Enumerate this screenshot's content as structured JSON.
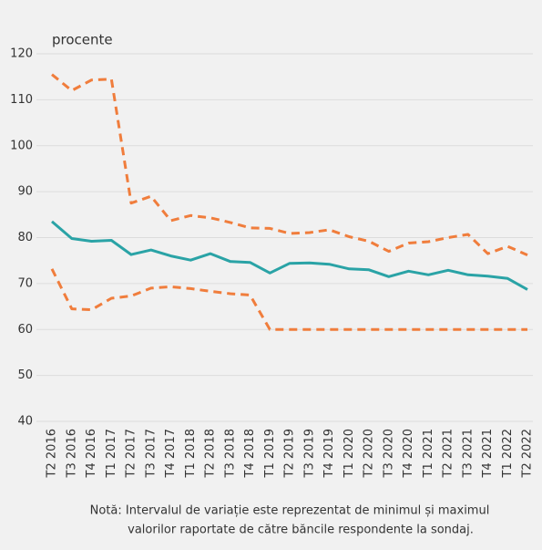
{
  "chart_data": {
    "type": "line",
    "y_label": "procente",
    "categories": [
      "T2 2016",
      "T3 2016",
      "T4 2016",
      "T1 2017",
      "T2 2017",
      "T3 2017",
      "T4 2017",
      "T1 2018",
      "T2 2018",
      "T3 2018",
      "T4 2018",
      "T1 2019",
      "T2 2019",
      "T3 2019",
      "T4 2019",
      "T1 2020",
      "T2 2020",
      "T3 2020",
      "T4 2020",
      "T1 2021",
      "T2 2021",
      "T3 2021",
      "T4 2021",
      "T1 2022",
      "T2 2022"
    ],
    "series": [
      {
        "color": "#2aa3a6",
        "dashed": false,
        "values": [
          83.5,
          79.8,
          79.2,
          79.4,
          76.3,
          77.3,
          76,
          75.1,
          76.5,
          74.8,
          74.6,
          72.3,
          74.4,
          74.5,
          74.2,
          73.2,
          73,
          71.5,
          72.7,
          71.9,
          72.9,
          71.9,
          71.6,
          71.1,
          68.7
        ]
      },
      {
        "color": "#f07d3c",
        "dashed": true,
        "values": [
          115.5,
          112,
          114.3,
          114.5,
          87.5,
          89,
          83.7,
          84.8,
          84.3,
          83.3,
          82.1,
          82,
          80.9,
          81.1,
          81.7,
          80.2,
          79.2,
          77,
          78.8,
          79.1,
          80,
          80.7,
          76.5,
          78.1,
          76.2
        ]
      },
      {
        "color": "#f07d3c",
        "dashed": true,
        "values": [
          73.2,
          64.5,
          64.3,
          66.8,
          67.3,
          69,
          69.3,
          68.9,
          68.3,
          67.8,
          67.5,
          60,
          60,
          60,
          60,
          60,
          60,
          60,
          60,
          60,
          60,
          60,
          60,
          60,
          60
        ]
      }
    ],
    "ylim": [
      40,
      120
    ],
    "yticks": [
      40,
      50,
      60,
      70,
      80,
      90,
      100,
      110,
      120
    ],
    "grid": true,
    "note": [
      "Notă: Intervalul de variație este reprezentat de minimul și maximul",
      "valorilor raportate de către băncile respondente la sondaj."
    ]
  }
}
